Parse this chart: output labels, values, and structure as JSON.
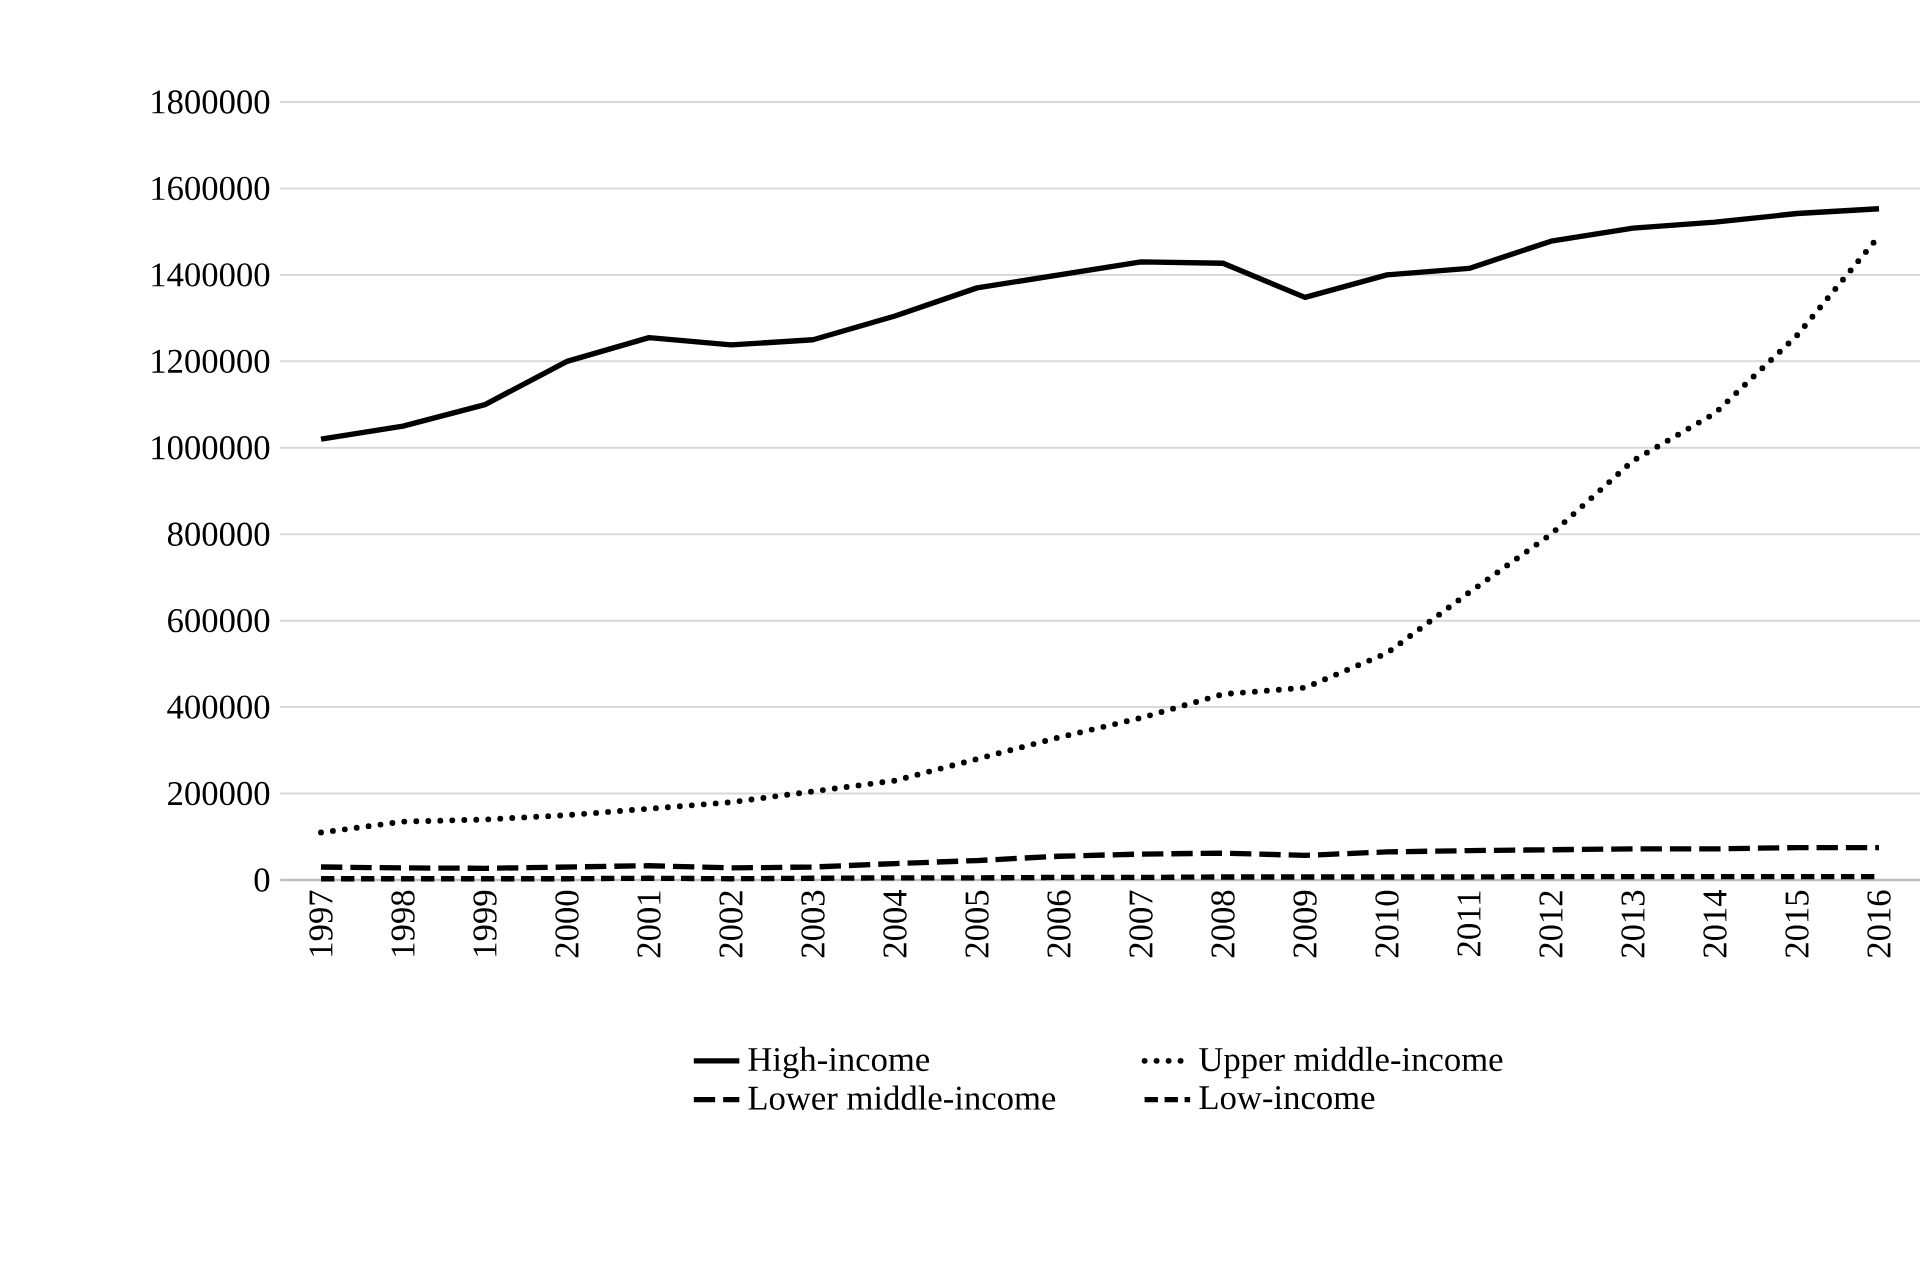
{
  "chart_data": {
    "type": "line",
    "categories": [
      "1997",
      "1998",
      "1999",
      "2000",
      "2001",
      "2002",
      "2003",
      "2004",
      "2005",
      "2006",
      "2007",
      "2008",
      "2009",
      "2010",
      "2011",
      "2012",
      "2013",
      "2014",
      "2015",
      "2016"
    ],
    "series": [
      {
        "name": "High-income",
        "color": "#000000",
        "line_style": "solid",
        "values": [
          1020000,
          1050000,
          1100000,
          1200000,
          1255000,
          1238000,
          1250000,
          1305000,
          1370000,
          1400000,
          1430000,
          1427000,
          1348000,
          1400000,
          1415000,
          1478000,
          1508000,
          1522000,
          1542000,
          1553000
        ]
      },
      {
        "name": "Upper middle-income",
        "color": "#000000",
        "line_style": "dotted",
        "values": [
          110000,
          135000,
          140000,
          150000,
          165000,
          180000,
          205000,
          230000,
          280000,
          330000,
          375000,
          430000,
          445000,
          525000,
          665000,
          800000,
          970000,
          1080000,
          1260000,
          1490000
        ]
      },
      {
        "name": "Lower middle-income",
        "color": "#000000",
        "line_style": "dashed",
        "values": [
          30000,
          28000,
          27000,
          30000,
          33000,
          28000,
          30000,
          38000,
          45000,
          55000,
          60000,
          62000,
          57000,
          65000,
          68000,
          70000,
          72000,
          72000,
          75000,
          75000
        ]
      },
      {
        "name": "Low-income",
        "color": "#000000",
        "line_style": "dashed",
        "values": [
          3000,
          3000,
          3000,
          3000,
          4000,
          3000,
          4000,
          5000,
          5000,
          6000,
          6000,
          7000,
          7000,
          7000,
          7000,
          8000,
          8000,
          8000,
          8000,
          8000
        ]
      }
    ],
    "ylim": [
      0,
      1800000
    ],
    "yticks": [
      0,
      200000,
      400000,
      600000,
      800000,
      1000000,
      1200000,
      1400000,
      1600000,
      1800000
    ],
    "grid": "y",
    "legend": "bottom",
    "marker": "none"
  }
}
